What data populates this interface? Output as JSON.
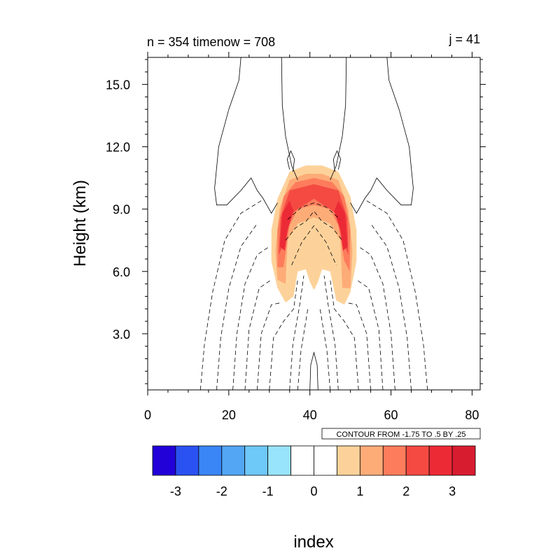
{
  "chart_data": {
    "type": "contour",
    "title_left": "n = 354 timenow = 708",
    "title_right": "j = 41",
    "ylabel": "Height (km)",
    "xlabel": "index",
    "contour_info": "CONTOUR FROM -1.75 TO .5 BY .25",
    "xlim": [
      0,
      82
    ],
    "ylim": [
      0.3,
      16.3
    ],
    "x_ticks": [
      0,
      20,
      40,
      60,
      80
    ],
    "x_tick_labels": [
      "0",
      "20",
      "40",
      "60",
      "80"
    ],
    "y_ticks": [
      3,
      6,
      9,
      12,
      15
    ],
    "y_tick_labels": [
      "3.0",
      "6.0",
      "9.0",
      "12.0",
      "15.0"
    ],
    "colorbar": {
      "colors": [
        "#2200d8",
        "#2a52f2",
        "#3a86f6",
        "#52a6f4",
        "#6ec8f8",
        "#98e4fc",
        "#ffffff",
        "#ffffff",
        "#fdd29a",
        "#fdac78",
        "#fd7c5c",
        "#f44a42",
        "#ec2a36",
        "#d81c30"
      ],
      "tick_labels": [
        "-3",
        "-2",
        "-1",
        "0",
        "1",
        "2",
        "3"
      ]
    },
    "filled_levels": [
      {
        "value": 0.5,
        "color": "#fdd29a"
      },
      {
        "value": 1.0,
        "color": "#fdac78"
      },
      {
        "value": 1.5,
        "color": "#fd7c5c"
      },
      {
        "value": 2.0,
        "color": "#f44a42"
      },
      {
        "value": 2.5,
        "color": "#ec2a36"
      },
      {
        "value": 3.0,
        "color": "#d81c30"
      }
    ],
    "contour_range": [
      -1.75,
      0.5
    ],
    "contour_interval": 0.25
  }
}
